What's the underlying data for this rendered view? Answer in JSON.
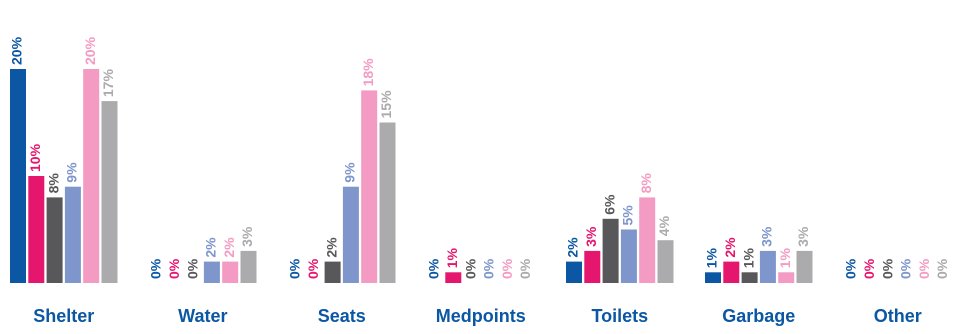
{
  "chart_data": {
    "type": "bar",
    "categories": [
      "Shelter",
      "Water",
      "Seats",
      "Medpoints",
      "Toilets",
      "Garbage",
      "Other"
    ],
    "series": [
      {
        "color": "#0B57A4",
        "values": [
          20,
          0,
          0,
          0,
          2,
          1,
          0
        ],
        "labels": [
          "20%",
          "0%",
          "0%",
          "0%",
          "2%",
          "1%",
          "0%"
        ]
      },
      {
        "color": "#E5166E",
        "values": [
          10,
          0,
          0,
          1,
          3,
          2,
          0
        ],
        "labels": [
          "10%",
          "0%",
          "0%",
          "1%",
          "3%",
          "2%",
          "0%"
        ]
      },
      {
        "color": "#58585A",
        "values": [
          8,
          0,
          2,
          0,
          6,
          1,
          0
        ],
        "labels": [
          "8%",
          "0%",
          "2%",
          "0%",
          "6%",
          "1%",
          "0%"
        ]
      },
      {
        "color": "#7E96CB",
        "values": [
          9,
          2,
          9,
          0,
          5,
          3,
          0
        ],
        "labels": [
          "9%",
          "2%",
          "9%",
          "0%",
          "5%",
          "3%",
          "0%"
        ]
      },
      {
        "color": "#F39BC3",
        "values": [
          20,
          2,
          18,
          0,
          8,
          1,
          0
        ],
        "labels": [
          "20%",
          "2%",
          "18%",
          "0%",
          "8%",
          "1%",
          "0%"
        ]
      },
      {
        "color": "#ABABAD",
        "values": [
          17,
          3,
          15,
          0,
          4,
          3,
          0
        ],
        "labels": [
          "17%",
          "3%",
          "15%",
          "0%",
          "4%",
          "3%",
          "0%"
        ]
      }
    ],
    "ylim": [
      0,
      20
    ],
    "category_label_color": "#0B57A4",
    "grid": false,
    "legend": "none"
  }
}
